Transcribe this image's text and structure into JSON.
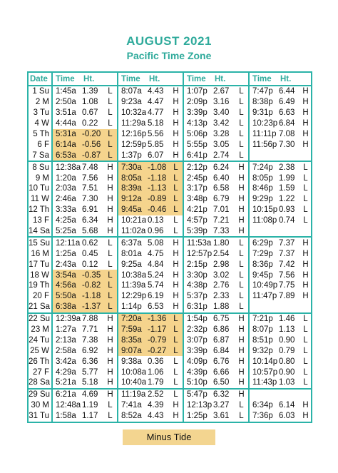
{
  "header": {
    "title": "AUGUST 2021",
    "subtitle": "Pacific Time Zone",
    "columns": [
      "Date",
      "Time",
      "Ht.",
      "Time",
      "Ht.",
      "Time",
      "Ht.",
      "Time",
      "Ht."
    ]
  },
  "rows": [
    {
      "date": "1 Su",
      "tides": [
        [
          "1:45a",
          "1.39",
          "L"
        ],
        [
          "8:07a",
          "4.43",
          "H"
        ],
        [
          "1:07p",
          "2.67",
          "L"
        ],
        [
          "7:47p",
          "6.44",
          "H"
        ]
      ]
    },
    {
      "date": "2 M",
      "tides": [
        [
          "2:50a",
          "1.08",
          "L"
        ],
        [
          "9:23a",
          "4.47",
          "H"
        ],
        [
          "2:09p",
          "3.16",
          "L"
        ],
        [
          "8:38p",
          "6.49",
          "H"
        ]
      ]
    },
    {
      "date": "3 Tu",
      "tides": [
        [
          "3:51a",
          "0.67",
          "L"
        ],
        [
          "10:32a",
          "4.77",
          "H"
        ],
        [
          "3:39p",
          "3.40",
          "L"
        ],
        [
          "9:31p",
          "6.63",
          "H"
        ]
      ]
    },
    {
      "date": "4 W",
      "tides": [
        [
          "4:44a",
          "0.22",
          "L"
        ],
        [
          "11:29a",
          "5.18",
          "H"
        ],
        [
          "4:13p",
          "3.42",
          "L"
        ],
        [
          "10:23p",
          "6.84",
          "H"
        ]
      ]
    },
    {
      "date": "5 Th",
      "tides": [
        [
          "5:31a",
          "-0.20",
          "L"
        ],
        [
          "12:16p",
          "5.56",
          "H"
        ],
        [
          "5:06p",
          "3.28",
          "L"
        ],
        [
          "11:11p",
          "7.08",
          "H"
        ]
      ]
    },
    {
      "date": "6 F",
      "tides": [
        [
          "6:14a",
          "-0.56",
          "L"
        ],
        [
          "12:59p",
          "5.85",
          "H"
        ],
        [
          "5:55p",
          "3.05",
          "L"
        ],
        [
          "11:56p",
          "7.30",
          "H"
        ]
      ]
    },
    {
      "date": "7 Sa",
      "tides": [
        [
          "6:53a",
          "-0.87",
          "L"
        ],
        [
          "1:37p",
          "6.07",
          "H"
        ],
        [
          "6:41p",
          "2.74",
          "L"
        ],
        null
      ]
    },
    {
      "date": "8 Su",
      "tides": [
        [
          "12:38a",
          "7.48",
          "H"
        ],
        [
          "7:30a",
          "-1.08",
          "L"
        ],
        [
          "2:12p",
          "6.24",
          "H"
        ],
        [
          "7:24p",
          "2.38",
          "L"
        ]
      ]
    },
    {
      "date": "9 M",
      "tides": [
        [
          "1:20a",
          "7.56",
          "H"
        ],
        [
          "8:05a",
          "-1.18",
          "L"
        ],
        [
          "2:45p",
          "6.40",
          "H"
        ],
        [
          "8:05p",
          "1.99",
          "L"
        ]
      ]
    },
    {
      "date": "10 Tu",
      "tides": [
        [
          "2:03a",
          "7.51",
          "H"
        ],
        [
          "8:39a",
          "-1.13",
          "L"
        ],
        [
          "3:17p",
          "6.58",
          "H"
        ],
        [
          "8:46p",
          "1.59",
          "L"
        ]
      ]
    },
    {
      "date": "11 W",
      "tides": [
        [
          "2:46a",
          "7.30",
          "H"
        ],
        [
          "9:12a",
          "-0.89",
          "L"
        ],
        [
          "3:48p",
          "6.79",
          "H"
        ],
        [
          "9:29p",
          "1.22",
          "L"
        ]
      ]
    },
    {
      "date": "12 Th",
      "tides": [
        [
          "3:33a",
          "6.91",
          "H"
        ],
        [
          "9:45a",
          "-0.46",
          "L"
        ],
        [
          "4:21p",
          "7.01",
          "H"
        ],
        [
          "10:15p",
          "0.93",
          "L"
        ]
      ]
    },
    {
      "date": "13 F",
      "tides": [
        [
          "4:25a",
          "6.34",
          "H"
        ],
        [
          "10:21a",
          "0.13",
          "L"
        ],
        [
          "4:57p",
          "7.21",
          "H"
        ],
        [
          "11:08p",
          "0.74",
          "L"
        ]
      ]
    },
    {
      "date": "14 Sa",
      "tides": [
        [
          "5:25a",
          "5.68",
          "H"
        ],
        [
          "11:02a",
          "0.96",
          "L"
        ],
        [
          "5:39p",
          "7.33",
          "H"
        ],
        null
      ]
    },
    {
      "date": "15 Su",
      "tides": [
        [
          "12:11a",
          "0.62",
          "L"
        ],
        [
          "6:37a",
          "5.08",
          "H"
        ],
        [
          "11:53a",
          "1.80",
          "L"
        ],
        [
          "6:29p",
          "7.37",
          "H"
        ]
      ]
    },
    {
      "date": "16 M",
      "tides": [
        [
          "1:25a",
          "0.45",
          "L"
        ],
        [
          "8:01a",
          "4.75",
          "H"
        ],
        [
          "12:57p",
          "2.54",
          "L"
        ],
        [
          "7:29p",
          "7.37",
          "H"
        ]
      ]
    },
    {
      "date": "17 Tu",
      "tides": [
        [
          "2:43a",
          "0.12",
          "L"
        ],
        [
          "9:25a",
          "4.84",
          "H"
        ],
        [
          "2:15p",
          "2.98",
          "L"
        ],
        [
          "8:36p",
          "7.42",
          "H"
        ]
      ]
    },
    {
      "date": "18 W",
      "tides": [
        [
          "3:54a",
          "-0.35",
          "L"
        ],
        [
          "10:38a",
          "5.24",
          "H"
        ],
        [
          "3:30p",
          "3.02",
          "L"
        ],
        [
          "9:45p",
          "7.56",
          "H"
        ]
      ]
    },
    {
      "date": "19 Th",
      "tides": [
        [
          "4:56a",
          "-0.82",
          "L"
        ],
        [
          "11:39a",
          "5.74",
          "H"
        ],
        [
          "4:38p",
          "2.76",
          "L"
        ],
        [
          "10:49p",
          "7.75",
          "H"
        ]
      ]
    },
    {
      "date": "20 F",
      "tides": [
        [
          "5:50a",
          "-1.18",
          "L"
        ],
        [
          "12:29p",
          "6.19",
          "H"
        ],
        [
          "5:37p",
          "2.33",
          "L"
        ],
        [
          "11:47p",
          "7.89",
          "H"
        ]
      ]
    },
    {
      "date": "21 Sa",
      "tides": [
        [
          "6:38a",
          "-1.37",
          "L"
        ],
        [
          "1:14p",
          "6.53",
          "H"
        ],
        [
          "6:31p",
          "1.88",
          "L"
        ],
        null
      ]
    },
    {
      "date": "22 Su",
      "tides": [
        [
          "12:39a",
          "7.88",
          "H"
        ],
        [
          "7:20a",
          "-1.36",
          "L"
        ],
        [
          "1:54p",
          "6.75",
          "H"
        ],
        [
          "7:21p",
          "1.46",
          "L"
        ]
      ]
    },
    {
      "date": "23 M",
      "tides": [
        [
          "1:27a",
          "7.71",
          "H"
        ],
        [
          "7:59a",
          "-1.17",
          "L"
        ],
        [
          "2:32p",
          "6.86",
          "H"
        ],
        [
          "8:07p",
          "1.13",
          "L"
        ]
      ]
    },
    {
      "date": "24 Tu",
      "tides": [
        [
          "2:13a",
          "7.38",
          "H"
        ],
        [
          "8:35a",
          "-0.79",
          "L"
        ],
        [
          "3:07p",
          "6.87",
          "H"
        ],
        [
          "8:51p",
          "0.90",
          "L"
        ]
      ]
    },
    {
      "date": "25 W",
      "tides": [
        [
          "2:58a",
          "6.92",
          "H"
        ],
        [
          "9:07a",
          "-0.27",
          "L"
        ],
        [
          "3:39p",
          "6.84",
          "H"
        ],
        [
          "9:32p",
          "0.79",
          "L"
        ]
      ]
    },
    {
      "date": "26 Th",
      "tides": [
        [
          "3:42a",
          "6.36",
          "H"
        ],
        [
          "9:38a",
          "0.36",
          "L"
        ],
        [
          "4:09p",
          "6.76",
          "H"
        ],
        [
          "10:14p",
          "0.80",
          "L"
        ]
      ]
    },
    {
      "date": "27 F",
      "tides": [
        [
          "4:29a",
          "5.77",
          "H"
        ],
        [
          "10:08a",
          "1.06",
          "L"
        ],
        [
          "4:39p",
          "6.66",
          "H"
        ],
        [
          "10:57p",
          "0.90",
          "L"
        ]
      ]
    },
    {
      "date": "28 Sa",
      "tides": [
        [
          "5:21a",
          "5.18",
          "H"
        ],
        [
          "10:40a",
          "1.79",
          "L"
        ],
        [
          "5:10p",
          "6.50",
          "H"
        ],
        [
          "11:43p",
          "1.03",
          "L"
        ]
      ]
    },
    {
      "date": "29 Su",
      "tides": [
        [
          "6:21a",
          "4.69",
          "H"
        ],
        [
          "11:19a",
          "2.52",
          "L"
        ],
        [
          "5:47p",
          "6.32",
          "H"
        ],
        null
      ]
    },
    {
      "date": "30 M",
      "tides": [
        [
          "12:48a",
          "1.19",
          "L"
        ],
        [
          "7:41a",
          "4.39",
          "H"
        ],
        [
          "12:13p",
          "3.27",
          "L"
        ],
        [
          "6:34p",
          "6.14",
          "H"
        ]
      ]
    },
    {
      "date": "31 Tu",
      "tides": [
        [
          "1:58a",
          "1.17",
          "L"
        ],
        [
          "8:52a",
          "4.43",
          "H"
        ],
        [
          "1:25p",
          "3.61",
          "L"
        ],
        [
          "7:36p",
          "6.03",
          "H"
        ]
      ]
    }
  ],
  "legend": "Minus Tide"
}
